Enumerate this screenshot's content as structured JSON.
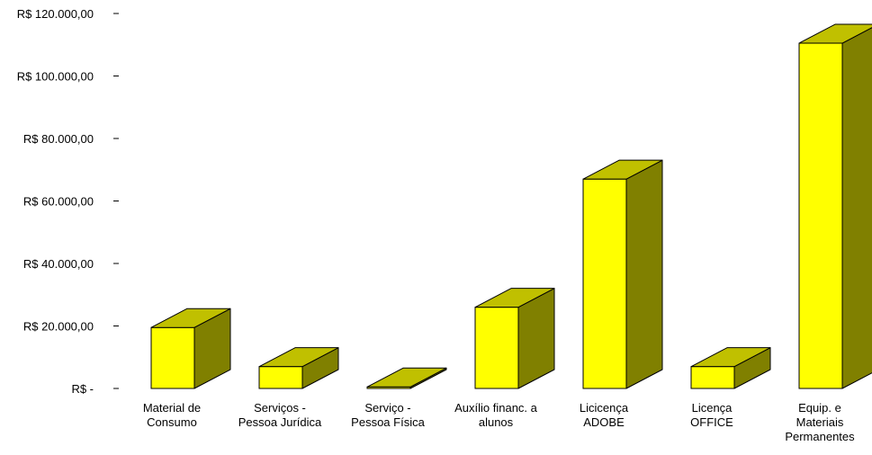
{
  "colors": {
    "bar_front": "#ffff00",
    "bar_side": "#808000",
    "bar_top": "#c0c000",
    "axis": "#000000",
    "background": "#ffffff"
  },
  "chart_data": {
    "type": "bar",
    "title": "",
    "xlabel": "",
    "ylabel": "",
    "ylim": [
      0,
      120000
    ],
    "grid": false,
    "three_d": true,
    "y_ticks": [
      {
        "value": 0,
        "label": "R$ -"
      },
      {
        "value": 20000,
        "label": "R$ 20.000,00"
      },
      {
        "value": 40000,
        "label": "R$ 40.000,00"
      },
      {
        "value": 60000,
        "label": "R$ 60.000,00"
      },
      {
        "value": 80000,
        "label": "R$ 80.000,00"
      },
      {
        "value": 100000,
        "label": "R$ 100.000,00"
      },
      {
        "value": 120000,
        "label": "R$ 120.000,00"
      }
    ],
    "categories": [
      [
        "Material de",
        "Consumo"
      ],
      [
        "Serviços -",
        "Pessoa Jurídica"
      ],
      [
        "Serviço -",
        "Pessoa Física"
      ],
      [
        "Auxílio financ. a",
        "alunos"
      ],
      [
        "Licicença",
        "ADOBE"
      ],
      [
        "Licença",
        "OFFICE"
      ],
      [
        "Equip. e",
        "Materiais",
        "Permanentes"
      ]
    ],
    "values": [
      19500,
      7000,
      500,
      26000,
      67000,
      7000,
      110500
    ]
  }
}
